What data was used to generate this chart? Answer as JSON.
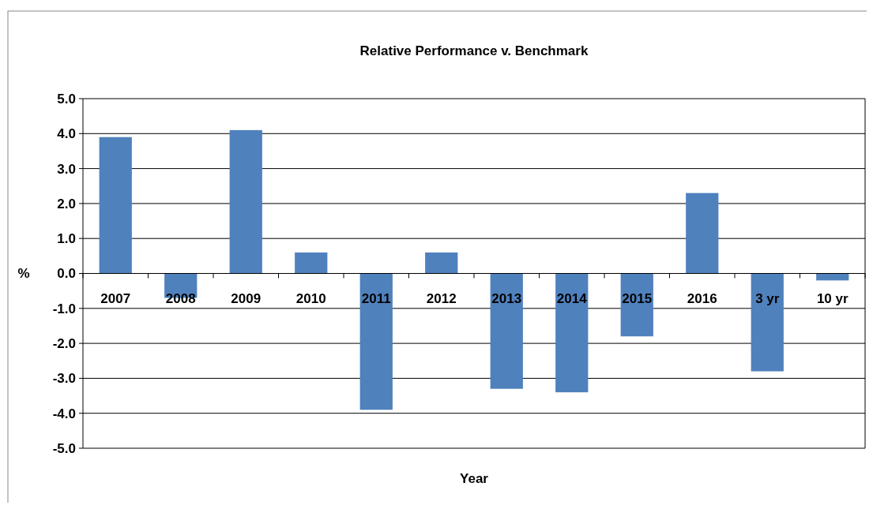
{
  "chart_data": {
    "type": "bar",
    "title": "Relative Performance v. Benchmark",
    "xlabel": "Year",
    "ylabel": "%",
    "categories": [
      "2007",
      "2008",
      "2009",
      "2010",
      "2011",
      "2012",
      "2013",
      "2014",
      "2015",
      "2016",
      "3 yr",
      "10 yr"
    ],
    "values": [
      3.9,
      -0.7,
      4.1,
      0.6,
      -3.9,
      0.6,
      -3.3,
      -3.4,
      -1.8,
      2.3,
      -2.8,
      -0.2
    ],
    "color": "#4f81bd",
    "ylim": [
      -5,
      5
    ],
    "yticks": [
      {
        "value": -5,
        "label": "-5.0"
      },
      {
        "value": -4,
        "label": "-4.0"
      },
      {
        "value": -3,
        "label": "-3.0"
      },
      {
        "value": -2,
        "label": "-2.0"
      },
      {
        "value": -1,
        "label": "-1.0"
      },
      {
        "value": 0,
        "label": "0.0"
      },
      {
        "value": 1,
        "label": "1.0"
      },
      {
        "value": 2,
        "label": "2.0"
      },
      {
        "value": 3,
        "label": "3.0"
      },
      {
        "value": 4,
        "label": "4.0"
      },
      {
        "value": 5,
        "label": "5.0"
      }
    ],
    "grid": "y"
  }
}
